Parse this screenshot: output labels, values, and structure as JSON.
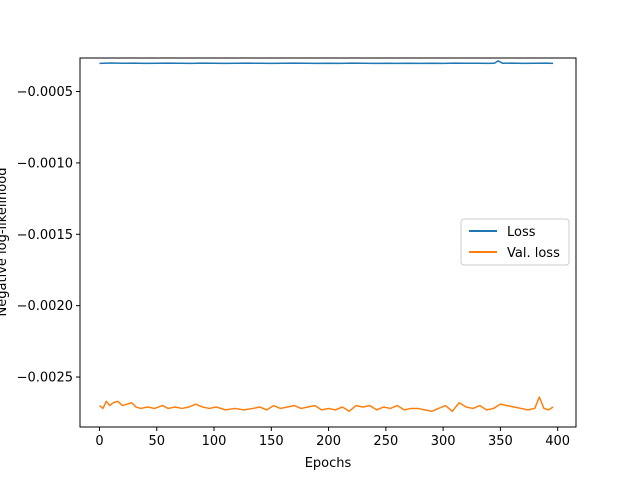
{
  "chart_data": {
    "type": "line",
    "title": "",
    "xlabel": "Epochs",
    "ylabel": "Negative log-likelihood",
    "xlim": [
      -17,
      416
    ],
    "ylim": [
      -0.00285,
      -0.000265
    ],
    "xticks": [
      0,
      50,
      100,
      150,
      200,
      250,
      300,
      350,
      400
    ],
    "xtick_labels": [
      "0",
      "50",
      "100",
      "150",
      "200",
      "250",
      "300",
      "350",
      "400"
    ],
    "yticks": [
      -0.0005,
      -0.001,
      -0.0015,
      -0.002,
      -0.0025
    ],
    "ytick_labels": [
      "−0.0005",
      "−0.0010",
      "−0.0015",
      "−0.0020",
      "−0.0025"
    ],
    "legend_position": "center-right",
    "grid": false,
    "series": [
      {
        "name": "Loss",
        "color": "#1f77b4",
        "x": [
          0,
          10,
          20,
          30,
          40,
          50,
          60,
          70,
          80,
          90,
          100,
          110,
          120,
          130,
          140,
          150,
          160,
          170,
          180,
          190,
          200,
          210,
          220,
          230,
          240,
          250,
          260,
          270,
          280,
          290,
          300,
          310,
          320,
          330,
          340,
          345,
          348,
          352,
          360,
          370,
          380,
          390,
          396
        ],
        "y": [
          -0.000303,
          -0.0003,
          -0.000302,
          -0.000301,
          -0.000303,
          -0.000302,
          -0.000301,
          -0.000302,
          -0.000303,
          -0.000301,
          -0.000302,
          -0.000303,
          -0.000302,
          -0.000301,
          -0.000302,
          -0.000303,
          -0.000302,
          -0.000301,
          -0.000302,
          -0.000303,
          -0.000302,
          -0.000303,
          -0.000301,
          -0.000302,
          -0.000303,
          -0.000302,
          -0.000303,
          -0.000302,
          -0.000303,
          -0.000302,
          -0.000303,
          -0.000301,
          -0.000302,
          -0.000302,
          -0.000303,
          -0.000301,
          -0.000285,
          -0.000302,
          -0.000301,
          -0.000303,
          -0.000302,
          -0.000301,
          -0.000303
        ]
      },
      {
        "name": "Val. loss",
        "color": "#ff7f0e",
        "x": [
          0,
          3,
          6,
          9,
          12,
          16,
          20,
          24,
          28,
          32,
          36,
          42,
          48,
          55,
          60,
          66,
          72,
          78,
          84,
          90,
          96,
          102,
          110,
          118,
          126,
          134,
          140,
          146,
          152,
          158,
          164,
          170,
          176,
          182,
          188,
          194,
          200,
          206,
          212,
          218,
          224,
          230,
          236,
          242,
          248,
          254,
          260,
          266,
          272,
          278,
          284,
          290,
          296,
          302,
          308,
          314,
          320,
          326,
          332,
          338,
          344,
          350,
          356,
          362,
          368,
          374,
          380,
          384,
          388,
          392,
          396
        ],
        "y": [
          -0.0027,
          -0.00272,
          -0.00267,
          -0.0027,
          -0.00268,
          -0.00267,
          -0.0027,
          -0.00269,
          -0.00268,
          -0.00271,
          -0.00272,
          -0.00271,
          -0.00272,
          -0.0027,
          -0.00272,
          -0.00271,
          -0.00272,
          -0.00271,
          -0.00269,
          -0.00271,
          -0.00272,
          -0.00271,
          -0.00273,
          -0.00272,
          -0.00273,
          -0.00272,
          -0.00271,
          -0.00273,
          -0.0027,
          -0.00272,
          -0.00271,
          -0.0027,
          -0.00272,
          -0.00271,
          -0.0027,
          -0.00273,
          -0.00272,
          -0.00273,
          -0.00271,
          -0.00274,
          -0.0027,
          -0.00271,
          -0.0027,
          -0.00273,
          -0.00271,
          -0.00272,
          -0.0027,
          -0.00273,
          -0.00272,
          -0.00272,
          -0.00273,
          -0.00274,
          -0.00272,
          -0.0027,
          -0.00274,
          -0.00268,
          -0.00271,
          -0.00272,
          -0.0027,
          -0.00273,
          -0.00272,
          -0.00269,
          -0.0027,
          -0.00271,
          -0.00272,
          -0.00273,
          -0.00272,
          -0.00264,
          -0.00272,
          -0.00273,
          -0.00271
        ]
      }
    ]
  }
}
